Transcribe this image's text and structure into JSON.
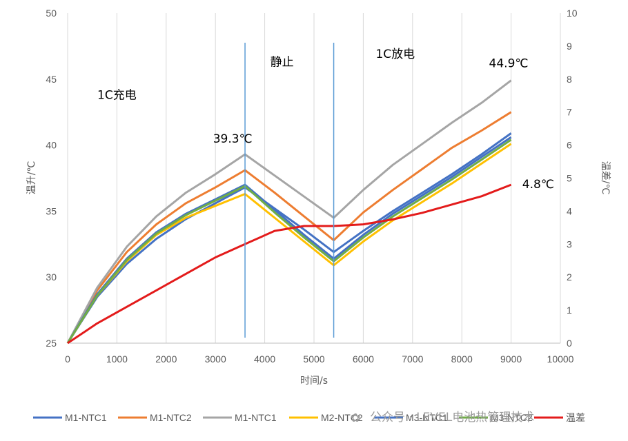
{
  "chart_data": {
    "type": "line",
    "xlabel": "时间/s",
    "ylabel": "温升/℃",
    "y2label": "温差/℃",
    "xlim": [
      0,
      10000
    ],
    "ylim": [
      25,
      50
    ],
    "y2lim": [
      0,
      10
    ],
    "x_ticks": [
      0,
      1000,
      2000,
      3000,
      4000,
      5000,
      6000,
      7000,
      8000,
      9000,
      10000
    ],
    "y_ticks": [
      25,
      30,
      35,
      40,
      45,
      50
    ],
    "y2_ticks": [
      0,
      1,
      2,
      3,
      4,
      5,
      6,
      7,
      8,
      9,
      10
    ],
    "grid": "vertical",
    "legend": "bottom",
    "x": [
      0,
      600,
      1200,
      1800,
      2400,
      3000,
      3600,
      4200,
      4800,
      5400,
      6000,
      6600,
      7200,
      7800,
      8400,
      9000
    ],
    "series": [
      {
        "name": "M1-NTC1",
        "axis": "left",
        "color": "#4472C4",
        "values": [
          25,
          28.5,
          31.0,
          32.9,
          34.4,
          35.6,
          36.8,
          35.2,
          33.6,
          31.9,
          33.5,
          35.0,
          36.4,
          37.8,
          39.3,
          40.9
        ]
      },
      {
        "name": "M1-NTC2",
        "axis": "left",
        "color": "#ED7D31",
        "values": [
          25,
          29.0,
          31.9,
          34.0,
          35.6,
          36.8,
          38.1,
          36.4,
          34.6,
          32.8,
          34.9,
          36.6,
          38.2,
          39.8,
          41.1,
          42.5
        ]
      },
      {
        "name": "M1-NTC1",
        "axis": "left",
        "color": "#A5A5A5",
        "values": [
          25,
          29.2,
          32.3,
          34.6,
          36.4,
          37.8,
          39.3,
          37.7,
          36.1,
          34.5,
          36.6,
          38.5,
          40.1,
          41.7,
          43.2,
          44.9
        ]
      },
      {
        "name": "M2-NTC2",
        "axis": "left",
        "color": "#FFC000",
        "values": [
          25,
          28.6,
          31.2,
          33.2,
          34.5,
          35.4,
          36.3,
          34.5,
          32.7,
          30.9,
          32.7,
          34.3,
          35.7,
          37.1,
          38.6,
          40.1
        ]
      },
      {
        "name": "M3-NTC1",
        "axis": "left",
        "color": "#4472C4",
        "values": [
          25,
          28.7,
          31.4,
          33.4,
          34.8,
          35.9,
          37.0,
          35.1,
          33.2,
          31.4,
          33.2,
          34.8,
          36.2,
          37.6,
          39.1,
          40.6
        ]
      },
      {
        "name": "M3-NTC2",
        "axis": "left",
        "color": "#70AD47",
        "values": [
          25,
          28.6,
          31.3,
          33.3,
          34.7,
          35.8,
          36.9,
          34.9,
          33.0,
          31.2,
          33.0,
          34.6,
          36.0,
          37.4,
          38.9,
          40.4
        ]
      },
      {
        "name": "温差",
        "axis": "right",
        "color": "#E31B1B",
        "values": [
          0,
          0.6,
          1.1,
          1.6,
          2.1,
          2.6,
          3.0,
          3.4,
          3.55,
          3.55,
          3.6,
          3.75,
          3.95,
          4.2,
          4.45,
          4.8
        ]
      }
    ],
    "markers": [
      {
        "x": 3600,
        "label": "静止"
      },
      {
        "x": 5400,
        "label": "静止"
      }
    ],
    "annotations": [
      {
        "text": "1C充电",
        "x": 1000,
        "y": 43.5
      },
      {
        "text": "静止",
        "x": 4350,
        "y": 46.0
      },
      {
        "text": "1C放电",
        "x": 6650,
        "y": 46.6
      },
      {
        "text": "39.3℃",
        "x": 3350,
        "y": 40.2
      },
      {
        "text": "44.9℃",
        "x": 8950,
        "y": 45.9
      },
      {
        "text": "4.8℃",
        "x": 9550,
        "y": 4.7,
        "axis": "right"
      }
    ]
  },
  "watermark": "公众号 · LEVEL电池热管理技术"
}
